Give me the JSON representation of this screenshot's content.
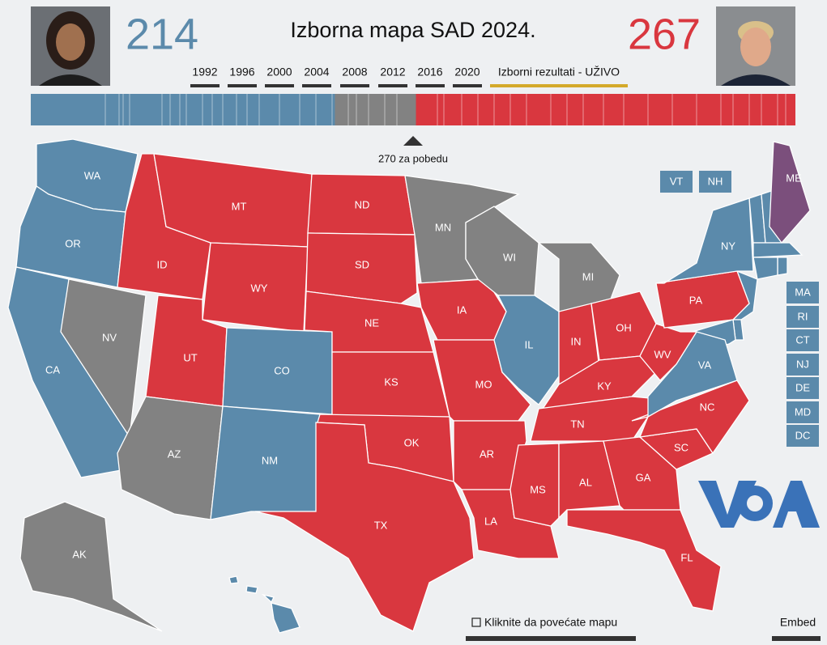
{
  "header": {
    "title": "Izborna mapa SAD 2024.",
    "dem_votes": 214,
    "rep_votes": 267,
    "years": [
      "1992",
      "1996",
      "2000",
      "2004",
      "2008",
      "2012",
      "2016",
      "2020"
    ],
    "live": "Izborni rezultati - UŽIVO",
    "threshold": "270 za pobedu"
  },
  "colors": {
    "dem": "#5b8aab",
    "rep": "#d9373f",
    "none": "#828282",
    "split": "#7b4f7c"
  },
  "states": [
    {
      "label": "WA",
      "party": "dem"
    },
    {
      "label": "OR",
      "party": "dem"
    },
    {
      "label": "CA",
      "party": "dem"
    },
    {
      "label": "NV",
      "party": "none"
    },
    {
      "label": "ID",
      "party": "rep"
    },
    {
      "label": "MT",
      "party": "rep"
    },
    {
      "label": "WY",
      "party": "rep"
    },
    {
      "label": "UT",
      "party": "rep"
    },
    {
      "label": "CO",
      "party": "dem"
    },
    {
      "label": "AZ",
      "party": "none"
    },
    {
      "label": "NM",
      "party": "dem"
    },
    {
      "label": "ND",
      "party": "rep"
    },
    {
      "label": "SD",
      "party": "rep"
    },
    {
      "label": "NE",
      "party": "rep"
    },
    {
      "label": "KS",
      "party": "rep"
    },
    {
      "label": "OK",
      "party": "rep"
    },
    {
      "label": "TX",
      "party": "rep"
    },
    {
      "label": "MN",
      "party": "none"
    },
    {
      "label": "IA",
      "party": "rep"
    },
    {
      "label": "MO",
      "party": "rep"
    },
    {
      "label": "AR",
      "party": "rep"
    },
    {
      "label": "LA",
      "party": "rep"
    },
    {
      "label": "WI",
      "party": "none"
    },
    {
      "label": "IL",
      "party": "dem"
    },
    {
      "label": "MI",
      "party": "none"
    },
    {
      "label": "IN",
      "party": "rep"
    },
    {
      "label": "OH",
      "party": "rep"
    },
    {
      "label": "KY",
      "party": "rep"
    },
    {
      "label": "TN",
      "party": "rep"
    },
    {
      "label": "MS",
      "party": "rep"
    },
    {
      "label": "AL",
      "party": "rep"
    },
    {
      "label": "GA",
      "party": "rep"
    },
    {
      "label": "FL",
      "party": "rep"
    },
    {
      "label": "SC",
      "party": "rep"
    },
    {
      "label": "NC",
      "party": "rep"
    },
    {
      "label": "VA",
      "party": "dem"
    },
    {
      "label": "WV",
      "party": "rep"
    },
    {
      "label": "PA",
      "party": "rep"
    },
    {
      "label": "NY",
      "party": "dem"
    },
    {
      "label": "ME",
      "party": "split"
    },
    {
      "label": "AK",
      "party": "none"
    }
  ],
  "small_states": [
    {
      "label": "VT",
      "party": "dem"
    },
    {
      "label": "NH",
      "party": "dem"
    },
    {
      "label": "MA",
      "party": "dem"
    },
    {
      "label": "RI",
      "party": "dem"
    },
    {
      "label": "CT",
      "party": "dem"
    },
    {
      "label": "NJ",
      "party": "dem"
    },
    {
      "label": "DE",
      "party": "dem"
    },
    {
      "label": "MD",
      "party": "dem"
    },
    {
      "label": "DC",
      "party": "dem"
    }
  ],
  "footer": {
    "zoom": "Kliknite da povećate mapu",
    "embed": "Embed"
  }
}
